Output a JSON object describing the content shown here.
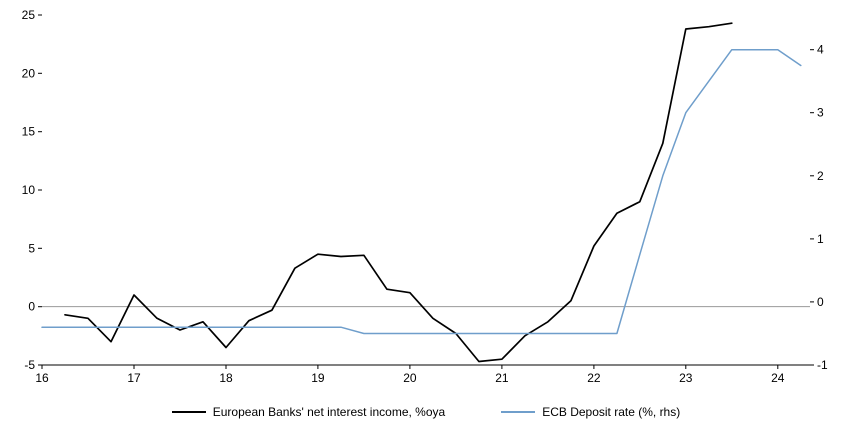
{
  "chart_data": {
    "type": "line",
    "title": "",
    "xlabel": "",
    "ylabel_left": "",
    "ylabel_right": "",
    "grid": "off",
    "legend_position": "bottom-center",
    "x_range": [
      16,
      24.35
    ],
    "x_ticks": [
      16,
      17,
      18,
      19,
      20,
      21,
      22,
      23,
      24
    ],
    "left_axis": {
      "range": [
        -5,
        25
      ],
      "ticks": [
        -5,
        0,
        5,
        10,
        15,
        20,
        25
      ]
    },
    "right_axis": {
      "range": [
        -1,
        4.55
      ],
      "ticks": [
        -1,
        0,
        1,
        2,
        3,
        4
      ]
    },
    "zero_line_value": 0,
    "zero_line_color": "#9a9a9a",
    "axis_color": "#000000",
    "series": [
      {
        "name": "European Banks' net interest income, %oya",
        "slug": "net-interest-income-line",
        "axis": "left",
        "color": "#000000",
        "width": 1.7,
        "x": [
          16.25,
          16.5,
          16.75,
          17.0,
          17.25,
          17.5,
          17.75,
          18.0,
          18.25,
          18.5,
          18.75,
          19.0,
          19.25,
          19.5,
          19.75,
          20.0,
          20.25,
          20.5,
          20.75,
          21.0,
          21.25,
          21.5,
          21.75,
          22.0,
          22.25,
          22.5,
          22.75,
          23.0,
          23.25,
          23.5
        ],
        "values": [
          -0.7,
          -1.0,
          -3.0,
          1.0,
          -1.0,
          -2.0,
          -1.3,
          -3.5,
          -1.2,
          -0.3,
          3.3,
          4.5,
          4.3,
          4.4,
          1.5,
          1.2,
          -1.0,
          -2.3,
          -4.7,
          -4.5,
          -2.5,
          -1.3,
          0.5,
          5.2,
          8.0,
          9.0,
          14.0,
          23.8,
          24.0,
          24.3
        ]
      },
      {
        "name": "ECB Deposit rate (%, rhs)",
        "slug": "ecb-deposit-rate-line",
        "axis": "right",
        "color": "#6f9ecb",
        "width": 1.5,
        "x": [
          16.0,
          16.25,
          16.5,
          16.75,
          17.0,
          17.25,
          17.5,
          17.75,
          18.0,
          18.25,
          18.5,
          18.75,
          19.0,
          19.25,
          19.5,
          19.75,
          20.0,
          20.25,
          20.5,
          20.75,
          21.0,
          21.25,
          21.5,
          21.75,
          22.0,
          22.25,
          22.5,
          22.75,
          23.0,
          23.25,
          23.5,
          23.75,
          24.0,
          24.25
        ],
        "values": [
          -0.4,
          -0.4,
          -0.4,
          -0.4,
          -0.4,
          -0.4,
          -0.4,
          -0.4,
          -0.4,
          -0.4,
          -0.4,
          -0.4,
          -0.4,
          -0.4,
          -0.5,
          -0.5,
          -0.5,
          -0.5,
          -0.5,
          -0.5,
          -0.5,
          -0.5,
          -0.5,
          -0.5,
          -0.5,
          -0.5,
          0.75,
          2.0,
          3.0,
          3.5,
          4.0,
          4.0,
          4.0,
          3.75
        ]
      }
    ]
  }
}
